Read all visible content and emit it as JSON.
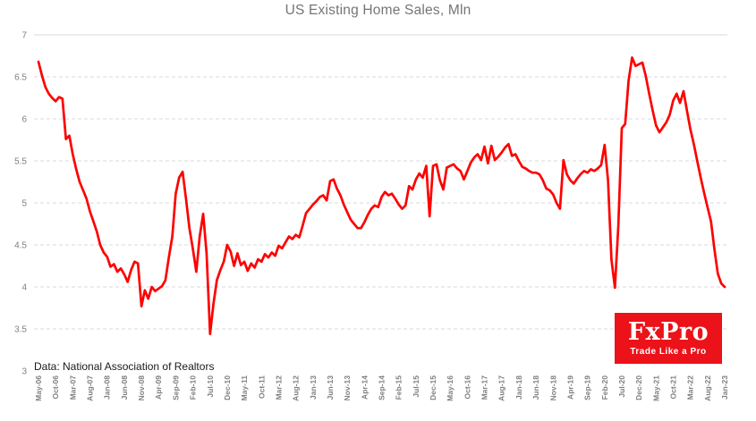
{
  "title": "US Existing Home Sales, Mln",
  "source_note": "Data: National Association of Realtors",
  "logo": {
    "brand": "FxPro",
    "tagline": "Trade Like a Pro",
    "bg_color": "#EB1219",
    "text_color": "#FFFFFF"
  },
  "colors": {
    "line": "#FE0000",
    "grid": "#D9D9D9",
    "title_text": "#757575",
    "axis_text": "#7F7F7F",
    "source_text": "#1A1A1A"
  },
  "chart_data": {
    "type": "line",
    "title": "US Existing Home Sales, Mln",
    "unit": "Mln",
    "frequency": "monthly",
    "x_start": "May-06",
    "x_end": "Jan-23",
    "ylim": [
      3,
      7
    ],
    "y_ticks": [
      7,
      6.5,
      6,
      5.5,
      5,
      4.5,
      4,
      3.5,
      3
    ],
    "grid": "horizontal-dashed",
    "legend": "none",
    "x_tick_labels": [
      "May-06",
      "Oct-06",
      "Mar-07",
      "Aug-07",
      "Jan-08",
      "Jun-08",
      "Nov-08",
      "Apr-09",
      "Sep-09",
      "Feb-10",
      "Jul-10",
      "Dec-10",
      "May-11",
      "Oct-11",
      "Mar-12",
      "Aug-12",
      "Jan-13",
      "Jun-13",
      "Nov-13",
      "Apr-14",
      "Sep-14",
      "Feb-15",
      "Jul-15",
      "Dec-15",
      "May-16",
      "Oct-16",
      "Mar-17",
      "Aug-17",
      "Jan-18",
      "Jun-18",
      "Nov-18",
      "Apr-19",
      "Sep-19",
      "Feb-20",
      "Jul-20",
      "Dec-20",
      "May-21",
      "Oct-21",
      "Mar-22",
      "Aug-22",
      "Jan-23"
    ],
    "series": [
      {
        "name": "US Existing Home Sales (Mln)",
        "color": "#FE0000",
        "values": [
          6.68,
          6.52,
          6.38,
          6.3,
          6.25,
          6.21,
          6.26,
          6.24,
          5.76,
          5.8,
          5.58,
          5.4,
          5.25,
          5.15,
          5.05,
          4.9,
          4.78,
          4.66,
          4.5,
          4.41,
          4.36,
          4.24,
          4.27,
          4.18,
          4.22,
          4.15,
          4.06,
          4.2,
          4.3,
          4.28,
          3.77,
          3.96,
          3.86,
          4.0,
          3.95,
          3.98,
          4.01,
          4.08,
          4.35,
          4.6,
          5.11,
          5.3,
          5.37,
          5.05,
          4.7,
          4.45,
          4.18,
          4.6,
          4.87,
          4.4,
          3.44,
          3.8,
          4.08,
          4.2,
          4.3,
          4.5,
          4.42,
          4.25,
          4.4,
          4.26,
          4.3,
          4.19,
          4.28,
          4.23,
          4.33,
          4.3,
          4.39,
          4.35,
          4.41,
          4.37,
          4.49,
          4.46,
          4.53,
          4.6,
          4.57,
          4.62,
          4.59,
          4.73,
          4.88,
          4.93,
          4.98,
          5.02,
          5.07,
          5.09,
          5.03,
          5.26,
          5.28,
          5.17,
          5.09,
          4.98,
          4.89,
          4.8,
          4.75,
          4.7,
          4.7,
          4.77,
          4.86,
          4.93,
          4.97,
          4.95,
          5.07,
          5.13,
          5.09,
          5.11,
          5.05,
          4.98,
          4.93,
          4.97,
          5.2,
          5.16,
          5.28,
          5.35,
          5.3,
          5.44,
          4.84,
          5.44,
          5.46,
          5.27,
          5.16,
          5.42,
          5.44,
          5.46,
          5.41,
          5.38,
          5.28,
          5.38,
          5.48,
          5.54,
          5.58,
          5.51,
          5.67,
          5.47,
          5.68,
          5.51,
          5.55,
          5.6,
          5.66,
          5.7,
          5.56,
          5.58,
          5.5,
          5.43,
          5.41,
          5.38,
          5.36,
          5.36,
          5.34,
          5.27,
          5.17,
          5.15,
          5.1,
          5.0,
          4.93,
          5.51,
          5.34,
          5.27,
          5.23,
          5.29,
          5.34,
          5.38,
          5.36,
          5.4,
          5.38,
          5.41,
          5.45,
          5.69,
          5.27,
          4.33,
          3.99,
          4.72,
          5.89,
          5.94,
          6.46,
          6.73,
          6.63,
          6.65,
          6.67,
          6.51,
          6.3,
          6.1,
          5.92,
          5.84,
          5.9,
          5.96,
          6.05,
          6.22,
          6.3,
          6.19,
          6.33,
          6.1,
          5.88,
          5.7,
          5.5,
          5.3,
          5.12,
          4.95,
          4.78,
          4.45,
          4.16,
          4.04,
          4.0
        ]
      }
    ]
  }
}
